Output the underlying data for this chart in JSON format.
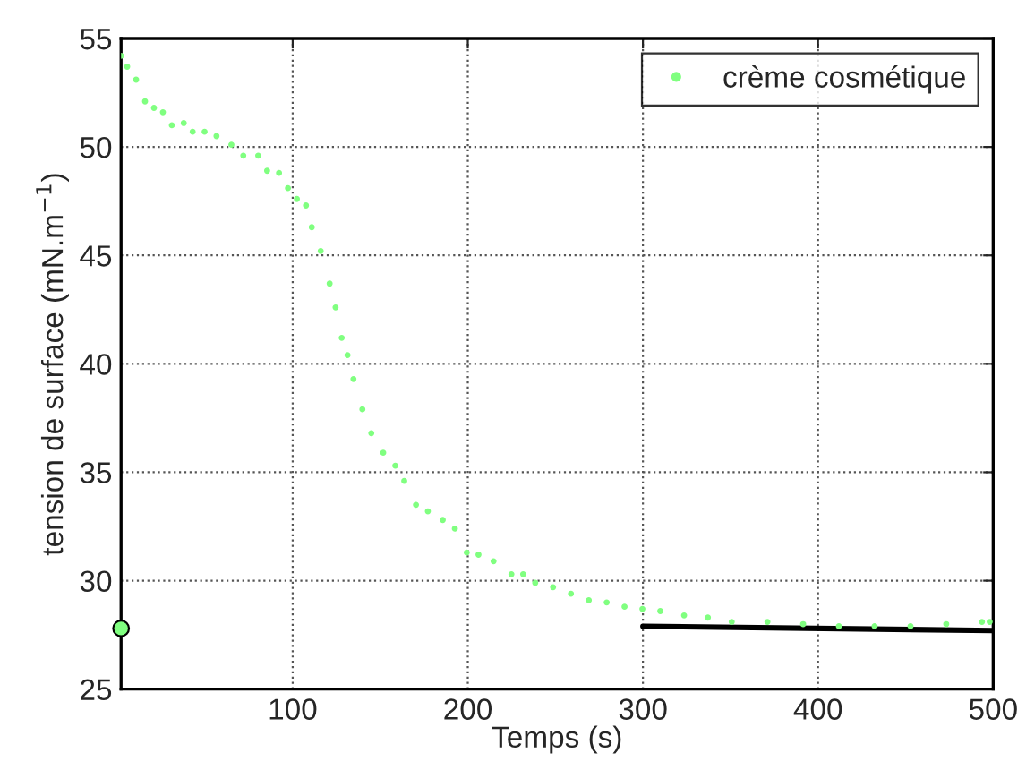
{
  "chart_data": {
    "type": "scatter",
    "xlabel": "Temps (s)",
    "ylabel": "tension de surface (mN.m$^{−1}$)",
    "xlim": [
      2,
      500
    ],
    "ylim": [
      25,
      55
    ],
    "xticks": [
      100,
      200,
      300,
      400,
      500
    ],
    "yticks": [
      25,
      30,
      35,
      40,
      45,
      50,
      55
    ],
    "grid": true,
    "legend": "top right",
    "marker": "circle",
    "series": [
      {
        "name": "crème cosmétique",
        "color": "#80ff80",
        "x": [
          2,
          5.5,
          10.6,
          15.7,
          20.8,
          25.9,
          31,
          37.8,
          42.9,
          49.7,
          56.5,
          65,
          71.8,
          80.3,
          85.4,
          92.2,
          97.3,
          102.4,
          107.6,
          110.9,
          116,
          121.1,
          124.5,
          128,
          131.3,
          134.7,
          139.8,
          144.9,
          151.7,
          158.6,
          163.7,
          170.4,
          177.2,
          185.7,
          192.6,
          199.4,
          206.1,
          214.7,
          224.9,
          231.6,
          238.5,
          248.7,
          258.9,
          269.1,
          279.3,
          289.5,
          299.7,
          309.9,
          323.5,
          337.1,
          350.7,
          371.1,
          391.5,
          411.9,
          432.3,
          452.8,
          473.2,
          493.6,
          498
        ],
        "values": [
          54.2,
          53.7,
          53.1,
          52.1,
          51.8,
          51.6,
          51.0,
          51.1,
          50.7,
          50.7,
          50.5,
          50.1,
          49.6,
          49.6,
          48.9,
          48.8,
          48.1,
          47.6,
          47.3,
          46.3,
          45.2,
          43.7,
          42.6,
          41.2,
          40.4,
          39.3,
          37.9,
          36.8,
          35.9,
          35.3,
          34.6,
          33.5,
          33.2,
          32.8,
          32.4,
          31.3,
          31.2,
          30.9,
          30.3,
          30.3,
          29.9,
          29.7,
          29.4,
          29.1,
          29.0,
          28.8,
          28.7,
          28.6,
          28.4,
          28.3,
          28.1,
          28.1,
          28.0,
          27.9,
          27.9,
          27.9,
          28.0,
          28.1,
          28.1
        ]
      },
      {
        "type": "line",
        "color": "#000000",
        "x": [
          300,
          500
        ],
        "values": [
          27.9,
          27.7
        ],
        "marker": "none",
        "line_style": "solid"
      },
      {
        "type": "scatter",
        "color": "#80ff80",
        "x": [
          2
        ],
        "values": [
          27.8
        ],
        "marker": "circle"
      }
    ]
  }
}
